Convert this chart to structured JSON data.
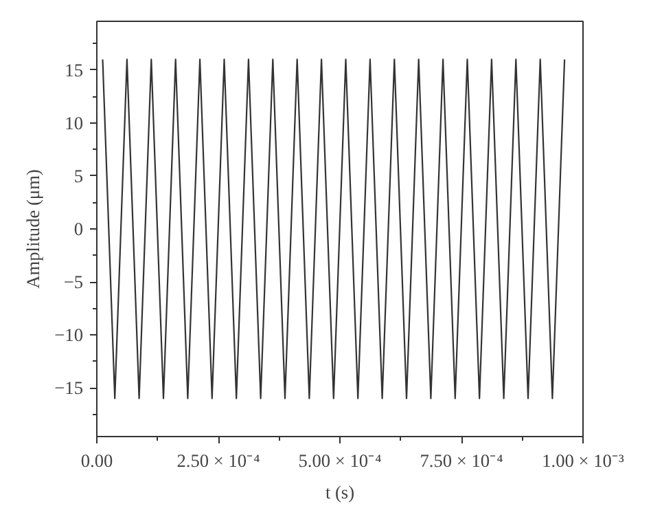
{
  "chart_data": {
    "type": "line",
    "xlabel": "t (s)",
    "ylabel": "Amplitude (μm)",
    "xlim": [
      0,
      0.001
    ],
    "ylim": [
      -19.6,
      19.6
    ],
    "xticks": [
      {
        "value": 0,
        "label": "0.00"
      },
      {
        "value": 0.00025,
        "label": "2.50 × 10⁻⁴"
      },
      {
        "value": 0.0005,
        "label": "5.00 × 10⁻⁴"
      },
      {
        "value": 0.00075,
        "label": "7.50 × 10⁻⁴"
      },
      {
        "value": 0.001,
        "label": "1.00 × 10⁻³"
      }
    ],
    "yticks": [
      -15,
      -10,
      -5,
      0,
      5,
      10,
      15
    ],
    "grid": false,
    "marker": "none",
    "line_style": "solid",
    "series": [
      {
        "color": "#333333",
        "x": [
          1.2e-05,
          2.45e-05,
          3.7e-05,
          4.95e-05,
          6.2e-05,
          7.45e-05,
          8.7e-05,
          9.95e-05,
          0.000112,
          0.0001245,
          0.000137,
          0.0001495,
          0.000162,
          0.0001745,
          0.000187,
          0.0001995,
          0.000212,
          0.0002245,
          0.000237,
          0.0002495,
          0.000262,
          0.0002745,
          0.000287,
          0.0002995,
          0.000312,
          0.0003245,
          0.000337,
          0.0003495,
          0.000362,
          0.0003745,
          0.000387,
          0.0003995,
          0.000412,
          0.0004245,
          0.000437,
          0.0004495,
          0.000462,
          0.0004745,
          0.000487,
          0.0004995,
          0.000512,
          0.0005245,
          0.000537,
          0.0005495,
          0.000562,
          0.0005745,
          0.000587,
          0.0005995,
          0.000612,
          0.0006245,
          0.000637,
          0.0006495,
          0.000662,
          0.0006745,
          0.000687,
          0.0006995,
          0.000712,
          0.0007245,
          0.000737,
          0.0007495,
          0.000762,
          0.0007745,
          0.000787,
          0.0007995,
          0.000812,
          0.0008245,
          0.000837,
          0.0008495,
          0.000862,
          0.0008745,
          0.000887,
          0.0008995,
          0.000912,
          0.0009245,
          0.000937,
          0.0009495,
          0.000962
        ],
        "values": [
          16,
          0,
          -16,
          0,
          16,
          0,
          -16,
          0,
          16,
          0,
          -16,
          0,
          16,
          0,
          -16,
          0,
          16,
          0,
          -16,
          0,
          16,
          0,
          -16,
          0,
          16,
          0,
          -16,
          0,
          16,
          0,
          -16,
          0,
          16,
          0,
          -16,
          0,
          16,
          0,
          -16,
          0,
          16,
          0,
          -16,
          0,
          16,
          0,
          -16,
          0,
          16,
          0,
          -16,
          0,
          16,
          0,
          -16,
          0,
          16,
          0,
          -16,
          0,
          16,
          0,
          -16,
          0,
          16,
          0,
          -16,
          0,
          16,
          0,
          -16,
          0,
          16,
          0,
          -16,
          0,
          16
        ]
      }
    ]
  }
}
